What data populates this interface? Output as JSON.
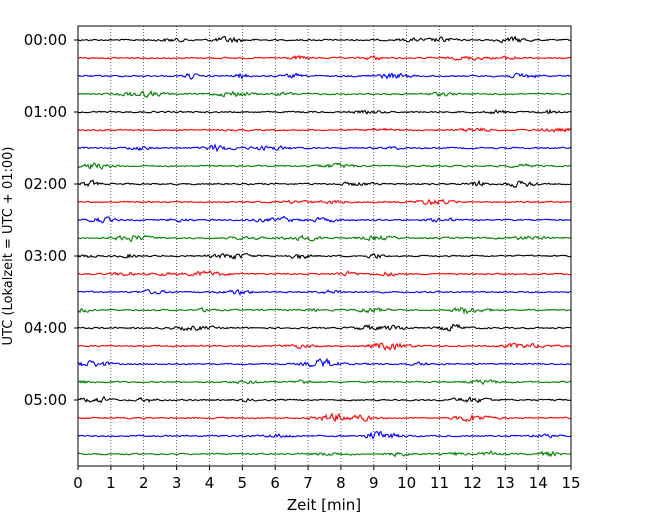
{
  "chart_data": {
    "type": "line",
    "title": "",
    "xlabel": "Zeit  [min]",
    "ylabel": "UTC (Lokalzeit = UTC + 01:00)",
    "xlim": [
      0,
      15
    ],
    "x_ticks": [
      "0",
      "1",
      "2",
      "3",
      "4",
      "5",
      "6",
      "7",
      "8",
      "9",
      "10",
      "11",
      "12",
      "13",
      "14",
      "15"
    ],
    "y_ticks": [
      "00:00",
      "01:00",
      "02:00",
      "03:00",
      "04:00",
      "05:00"
    ],
    "row_interval_minutes": 15,
    "row_count": 24,
    "row_colors": [
      "#000000",
      "#ff0000",
      "#0000ff",
      "#008000"
    ],
    "grid": "vertical dotted lines at each minute",
    "rows_start_utc": "00:00",
    "rows_end_utc": "05:45"
  }
}
